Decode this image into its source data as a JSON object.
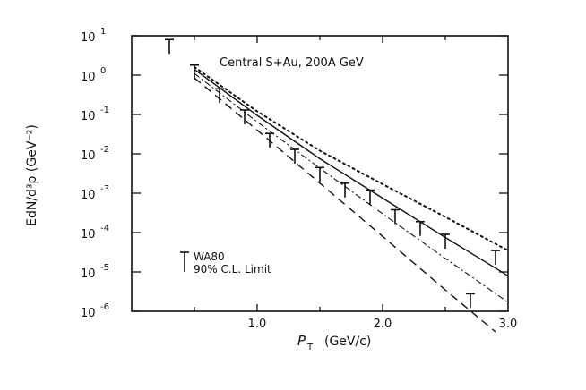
{
  "chart_data": {
    "type": "line",
    "title": "Central S+Au, 200A GeV",
    "xlabel": "P",
    "xlabel_sub": "T",
    "xlabel_units": "(GeV/c)",
    "ylabel": "EdN/d³p (GeV⁻²)",
    "xlim": [
      0.0,
      3.0
    ],
    "ylim_log10": [
      -6,
      1
    ],
    "yscale": "log",
    "grid": false,
    "x_tick_labels": [
      "1.0",
      "2.0",
      "3.0"
    ],
    "y_tick_labels": [
      {
        "base": "10",
        "exp": "1"
      },
      {
        "base": "10",
        "exp": "0"
      },
      {
        "base": "10",
        "exp": "-1"
      },
      {
        "base": "10",
        "exp": "-2"
      },
      {
        "base": "10",
        "exp": "-3"
      },
      {
        "base": "10",
        "exp": "-4"
      },
      {
        "base": "10",
        "exp": "-5"
      },
      {
        "base": "10",
        "exp": "-6"
      }
    ],
    "legend": {
      "label_line1": "WA80",
      "label_line2": "90% C.L. Limit",
      "placement": "bottom-left"
    },
    "upper_limits": [
      {
        "x": 0.3,
        "y": 8.0
      },
      {
        "x": 0.5,
        "y": 1.8
      },
      {
        "x": 0.7,
        "y": 0.45
      },
      {
        "x": 0.9,
        "y": 0.13
      },
      {
        "x": 1.1,
        "y": 0.033
      },
      {
        "x": 1.3,
        "y": 0.013
      },
      {
        "x": 1.5,
        "y": 0.0045
      },
      {
        "x": 1.7,
        "y": 0.0018
      },
      {
        "x": 1.9,
        "y": 0.0012
      },
      {
        "x": 2.1,
        "y": 0.00038
      },
      {
        "x": 2.3,
        "y": 0.00019
      },
      {
        "x": 2.5,
        "y": 9e-05
      },
      {
        "x": 2.7,
        "y": 2.8e-06
      },
      {
        "x": 2.9,
        "y": 3.5e-05
      }
    ],
    "series": [
      {
        "style": "dotted",
        "x": [
          0.5,
          1.0,
          1.5,
          2.0,
          2.5,
          3.0
        ],
        "y": [
          1.6,
          0.12,
          0.012,
          0.0017,
          0.00025,
          3.5e-05
        ]
      },
      {
        "style": "solid",
        "x": [
          0.5,
          1.0,
          1.5,
          2.0,
          2.5,
          3.0
        ],
        "y": [
          1.4,
          0.095,
          0.0075,
          0.00075,
          7.5e-05,
          8e-06
        ]
      },
      {
        "style": "dash-dot",
        "x": [
          0.5,
          1.0,
          1.5,
          2.0,
          2.5,
          3.0
        ],
        "y": [
          1.1,
          0.065,
          0.0043,
          0.0003,
          2.2e-05,
          1.7e-06
        ]
      },
      {
        "style": "dashed",
        "x": [
          0.5,
          1.0,
          1.5,
          2.0,
          2.5,
          2.9
        ],
        "y": [
          0.85,
          0.04,
          0.0018,
          8e-05,
          3.5e-06,
          3e-07
        ]
      }
    ]
  }
}
